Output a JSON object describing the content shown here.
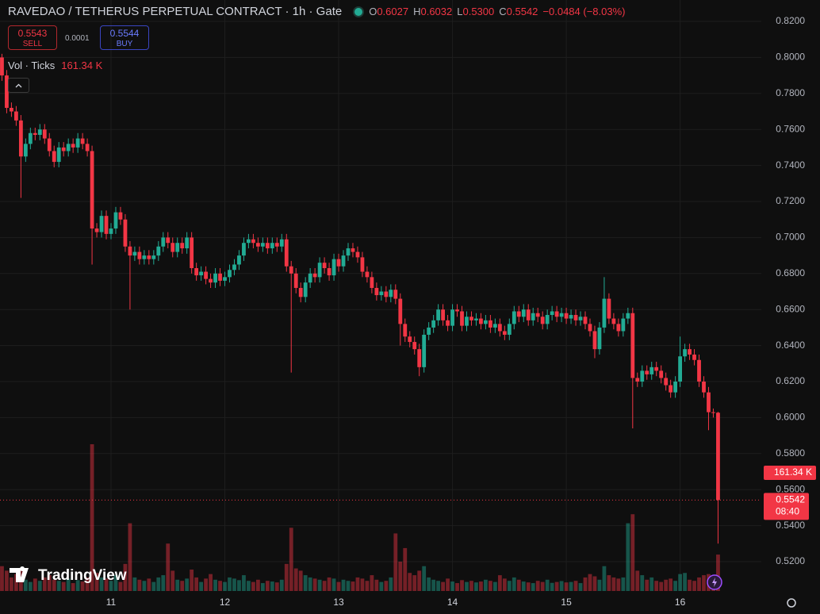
{
  "chart_data": {
    "type": "candlestick",
    "title": "RAVEDAO / TETHERUS PERPETUAL CONTRACT · 1h · Gate",
    "legend": {
      "o_key": "O",
      "o": "0.6027",
      "h_key": "H",
      "h": "0.6032",
      "l_key": "L",
      "l": "0.5300",
      "c_key": "C",
      "c": "0.5542",
      "change": "−0.0484 (−8.03%)"
    },
    "sell": {
      "price": "0.5543",
      "label": "SELL"
    },
    "spread": "0.0001",
    "buy": {
      "price": "0.5544",
      "label": "BUY"
    },
    "volume_title": "Vol · Ticks",
    "volume_value": "161.34 K",
    "categories": [
      null,
      null,
      null,
      null,
      null,
      null,
      null,
      null,
      null,
      null,
      null,
      null,
      null,
      null,
      null,
      null,
      null,
      null,
      null,
      null,
      null,
      null,
      null,
      "11",
      null,
      null,
      null,
      null,
      null,
      null,
      null,
      null,
      null,
      null,
      null,
      null,
      null,
      null,
      null,
      null,
      null,
      null,
      null,
      null,
      null,
      null,
      null,
      "12",
      null,
      null,
      null,
      null,
      null,
      null,
      null,
      null,
      null,
      null,
      null,
      null,
      null,
      null,
      null,
      null,
      null,
      null,
      null,
      null,
      null,
      null,
      null,
      "13",
      null,
      null,
      null,
      null,
      null,
      null,
      null,
      null,
      null,
      null,
      null,
      null,
      null,
      null,
      null,
      null,
      null,
      null,
      null,
      null,
      null,
      null,
      null,
      "14",
      null,
      null,
      null,
      null,
      null,
      null,
      null,
      null,
      null,
      null,
      null,
      null,
      null,
      null,
      null,
      null,
      null,
      null,
      null,
      null,
      null,
      null,
      null,
      "15",
      null,
      null,
      null,
      null,
      null,
      null,
      null,
      null,
      null,
      null,
      null,
      null,
      null,
      null,
      null,
      null,
      null,
      null,
      null,
      null,
      null,
      null,
      null,
      "16",
      null,
      null,
      null,
      null,
      null,
      null,
      null,
      null
    ],
    "open": [
      0.8,
      0.79,
      0.772,
      0.77,
      0.765,
      0.745,
      0.752,
      0.758,
      0.757,
      0.76,
      0.755,
      0.748,
      0.742,
      0.75,
      0.748,
      0.752,
      0.75,
      0.755,
      0.752,
      0.748,
      0.705,
      0.703,
      0.712,
      0.702,
      0.705,
      0.714,
      0.71,
      0.695,
      0.69,
      0.692,
      0.688,
      0.69,
      0.688,
      0.69,
      0.695,
      0.7,
      0.697,
      0.692,
      0.697,
      0.694,
      0.7,
      0.683,
      0.679,
      0.681,
      0.677,
      0.675,
      0.68,
      0.676,
      0.678,
      0.682,
      0.685,
      0.69,
      0.697,
      0.699,
      0.697,
      0.695,
      0.697,
      0.694,
      0.697,
      0.695,
      0.699,
      0.684,
      0.68,
      0.672,
      0.667,
      0.675,
      0.68,
      0.678,
      0.686,
      0.683,
      0.679,
      0.688,
      0.684,
      0.69,
      0.694,
      0.692,
      0.689,
      0.681,
      0.678,
      0.672,
      0.668,
      0.67,
      0.667,
      0.671,
      0.666,
      0.652,
      0.645,
      0.642,
      0.638,
      0.628,
      0.646,
      0.65,
      0.654,
      0.66,
      0.654,
      0.651,
      0.66,
      0.659,
      0.651,
      0.656,
      0.654,
      0.655,
      0.652,
      0.654,
      0.65,
      0.652,
      0.648,
      0.646,
      0.652,
      0.659,
      0.656,
      0.66,
      0.654,
      0.658,
      0.656,
      0.652,
      0.657,
      0.659,
      0.656,
      0.658,
      0.655,
      0.657,
      0.654,
      0.656,
      0.652,
      0.648,
      0.638,
      0.65,
      0.666,
      0.655,
      0.652,
      0.648,
      0.655,
      0.658,
      0.622,
      0.62,
      0.626,
      0.624,
      0.628,
      0.626,
      0.622,
      0.618,
      0.614,
      0.62,
      0.634,
      0.638,
      0.635,
      0.632,
      0.62,
      0.614,
      0.603,
      0.6027
    ],
    "high": [
      0.802,
      0.793,
      0.775,
      0.773,
      0.768,
      0.755,
      0.761,
      0.761,
      0.763,
      0.763,
      0.758,
      0.751,
      0.753,
      0.753,
      0.755,
      0.755,
      0.758,
      0.758,
      0.755,
      0.751,
      0.708,
      0.715,
      0.715,
      0.708,
      0.717,
      0.717,
      0.713,
      0.698,
      0.695,
      0.695,
      0.693,
      0.693,
      0.693,
      0.698,
      0.703,
      0.703,
      0.7,
      0.7,
      0.7,
      0.703,
      0.703,
      0.686,
      0.684,
      0.684,
      0.68,
      0.683,
      0.683,
      0.681,
      0.685,
      0.688,
      0.693,
      0.7,
      0.702,
      0.702,
      0.7,
      0.7,
      0.7,
      0.7,
      0.7,
      0.702,
      0.702,
      0.687,
      0.683,
      0.675,
      0.678,
      0.683,
      0.683,
      0.689,
      0.689,
      0.686,
      0.691,
      0.691,
      0.693,
      0.697,
      0.697,
      0.695,
      0.692,
      0.684,
      0.681,
      0.675,
      0.673,
      0.673,
      0.674,
      0.674,
      0.669,
      0.655,
      0.648,
      0.645,
      0.641,
      0.649,
      0.653,
      0.657,
      0.663,
      0.663,
      0.657,
      0.663,
      0.663,
      0.662,
      0.659,
      0.659,
      0.658,
      0.658,
      0.657,
      0.657,
      0.655,
      0.655,
      0.651,
      0.655,
      0.662,
      0.662,
      0.663,
      0.663,
      0.661,
      0.661,
      0.659,
      0.66,
      0.662,
      0.662,
      0.661,
      0.661,
      0.66,
      0.66,
      0.659,
      0.659,
      0.655,
      0.651,
      0.653,
      0.678,
      0.669,
      0.658,
      0.655,
      0.658,
      0.661,
      0.661,
      0.625,
      0.629,
      0.629,
      0.631,
      0.631,
      0.629,
      0.625,
      0.621,
      0.623,
      0.645,
      0.641,
      0.641,
      0.638,
      0.635,
      0.623,
      0.617,
      0.605,
      0.6032
    ],
    "low": [
      0.787,
      0.769,
      0.767,
      0.762,
      0.722,
      0.742,
      0.749,
      0.754,
      0.754,
      0.752,
      0.745,
      0.739,
      0.739,
      0.745,
      0.745,
      0.747,
      0.747,
      0.749,
      0.745,
      0.685,
      0.7,
      0.7,
      0.699,
      0.699,
      0.702,
      0.707,
      0.692,
      0.66,
      0.687,
      0.685,
      0.685,
      0.685,
      0.685,
      0.687,
      0.692,
      0.694,
      0.689,
      0.689,
      0.691,
      0.691,
      0.68,
      0.676,
      0.676,
      0.674,
      0.672,
      0.672,
      0.673,
      0.673,
      0.675,
      0.679,
      0.682,
      0.687,
      0.694,
      0.694,
      0.692,
      0.692,
      0.691,
      0.691,
      0.692,
      0.692,
      0.681,
      0.625,
      0.669,
      0.664,
      0.664,
      0.672,
      0.675,
      0.675,
      0.68,
      0.676,
      0.676,
      0.681,
      0.681,
      0.687,
      0.689,
      0.686,
      0.678,
      0.675,
      0.669,
      0.665,
      0.665,
      0.664,
      0.664,
      0.663,
      0.64,
      0.642,
      0.639,
      0.635,
      0.623,
      0.625,
      0.643,
      0.647,
      0.651,
      0.651,
      0.648,
      0.648,
      0.656,
      0.648,
      0.648,
      0.651,
      0.651,
      0.649,
      0.649,
      0.647,
      0.647,
      0.645,
      0.643,
      0.643,
      0.649,
      0.653,
      0.653,
      0.651,
      0.651,
      0.653,
      0.649,
      0.649,
      0.654,
      0.653,
      0.653,
      0.652,
      0.652,
      0.651,
      0.651,
      0.649,
      0.645,
      0.633,
      0.635,
      0.647,
      0.652,
      0.649,
      0.645,
      0.645,
      0.652,
      0.594,
      0.617,
      0.617,
      0.621,
      0.621,
      0.623,
      0.619,
      0.615,
      0.611,
      0.611,
      0.617,
      0.631,
      0.632,
      0.629,
      0.617,
      0.611,
      0.593,
      0.6,
      0.53
    ],
    "close": [
      0.79,
      0.772,
      0.77,
      0.765,
      0.745,
      0.752,
      0.758,
      0.757,
      0.76,
      0.755,
      0.748,
      0.742,
      0.75,
      0.748,
      0.752,
      0.75,
      0.755,
      0.752,
      0.748,
      0.705,
      0.703,
      0.712,
      0.702,
      0.705,
      0.714,
      0.71,
      0.695,
      0.69,
      0.692,
      0.688,
      0.69,
      0.688,
      0.69,
      0.695,
      0.7,
      0.697,
      0.692,
      0.697,
      0.694,
      0.7,
      0.683,
      0.679,
      0.681,
      0.677,
      0.675,
      0.68,
      0.676,
      0.678,
      0.682,
      0.685,
      0.69,
      0.697,
      0.699,
      0.697,
      0.695,
      0.697,
      0.694,
      0.697,
      0.695,
      0.699,
      0.684,
      0.68,
      0.672,
      0.667,
      0.675,
      0.68,
      0.678,
      0.686,
      0.683,
      0.679,
      0.688,
      0.684,
      0.69,
      0.694,
      0.692,
      0.689,
      0.681,
      0.678,
      0.672,
      0.668,
      0.67,
      0.667,
      0.671,
      0.666,
      0.652,
      0.645,
      0.642,
      0.638,
      0.628,
      0.646,
      0.65,
      0.654,
      0.66,
      0.654,
      0.651,
      0.66,
      0.659,
      0.651,
      0.656,
      0.654,
      0.655,
      0.652,
      0.654,
      0.65,
      0.652,
      0.648,
      0.646,
      0.652,
      0.659,
      0.656,
      0.66,
      0.654,
      0.658,
      0.656,
      0.652,
      0.657,
      0.659,
      0.656,
      0.658,
      0.655,
      0.657,
      0.654,
      0.656,
      0.652,
      0.648,
      0.638,
      0.65,
      0.666,
      0.655,
      0.652,
      0.648,
      0.655,
      0.658,
      0.622,
      0.62,
      0.626,
      0.624,
      0.628,
      0.626,
      0.622,
      0.618,
      0.614,
      0.62,
      0.634,
      0.638,
      0.635,
      0.632,
      0.62,
      0.614,
      0.603,
      0.6027,
      0.5542
    ],
    "volume": [
      110000,
      90000,
      60000,
      75000,
      95000,
      50000,
      40000,
      55000,
      45000,
      60000,
      70000,
      50000,
      45000,
      40000,
      55000,
      35000,
      48000,
      42000,
      60000,
      650000,
      80000,
      60000,
      55000,
      45000,
      70000,
      40000,
      120000,
      300000,
      60000,
      50000,
      45000,
      55000,
      40000,
      60000,
      70000,
      210000,
      90000,
      50000,
      45000,
      55000,
      95000,
      60000,
      40000,
      55000,
      75000,
      50000,
      45000,
      40000,
      60000,
      55000,
      48000,
      70000,
      45000,
      40000,
      50000,
      35000,
      45000,
      42000,
      38000,
      50000,
      120000,
      280000,
      100000,
      90000,
      70000,
      60000,
      55000,
      50000,
      45000,
      60000,
      55000,
      40000,
      50000,
      45000,
      42000,
      60000,
      55000,
      45000,
      70000,
      50000,
      40000,
      45000,
      60000,
      255000,
      130000,
      190000,
      80000,
      70000,
      90000,
      110000,
      60000,
      50000,
      45000,
      40000,
      55000,
      42000,
      35000,
      48000,
      40000,
      45000,
      38000,
      42000,
      50000,
      45000,
      40000,
      70000,
      55000,
      45000,
      60000,
      50000,
      42000,
      38000,
      35000,
      45000,
      40000,
      50000,
      36000,
      40000,
      44000,
      38000,
      40000,
      45000,
      35000,
      60000,
      75000,
      65000,
      50000,
      110000,
      70000,
      60000,
      55000,
      60000,
      300000,
      340000,
      90000,
      70000,
      50000,
      60000,
      45000,
      40000,
      50000,
      55000,
      45000,
      75000,
      80000,
      50000,
      45000,
      60000,
      70000,
      75000,
      70000,
      161340
    ],
    "up_color": "#22ab94",
    "down_color": "#f23645",
    "ylim": [
      0.5037,
      0.8319
    ],
    "yticks": [
      {
        "value": 0.52,
        "label": "0.5200"
      },
      {
        "value": 0.54,
        "label": "0.5400"
      },
      {
        "value": 0.56,
        "label": "0.5600"
      },
      {
        "value": 0.58,
        "label": "0.5800"
      },
      {
        "value": 0.6,
        "label": "0.6000"
      },
      {
        "value": 0.62,
        "label": "0.6200"
      },
      {
        "value": 0.64,
        "label": "0.6400"
      },
      {
        "value": 0.66,
        "label": "0.6600"
      },
      {
        "value": 0.68,
        "label": "0.6800"
      },
      {
        "value": 0.7,
        "label": "0.7000"
      },
      {
        "value": 0.72,
        "label": "0.7200"
      },
      {
        "value": 0.74,
        "label": "0.7400"
      },
      {
        "value": 0.76,
        "label": "0.7600"
      },
      {
        "value": 0.78,
        "label": "0.7800"
      },
      {
        "value": 0.8,
        "label": "0.8000"
      },
      {
        "value": 0.82,
        "label": "0.8200"
      }
    ],
    "last_price_label": "0.5542",
    "countdown": "08:40",
    "volume_badge": "161.34 K",
    "grid": true,
    "watermark": "TradingView"
  }
}
